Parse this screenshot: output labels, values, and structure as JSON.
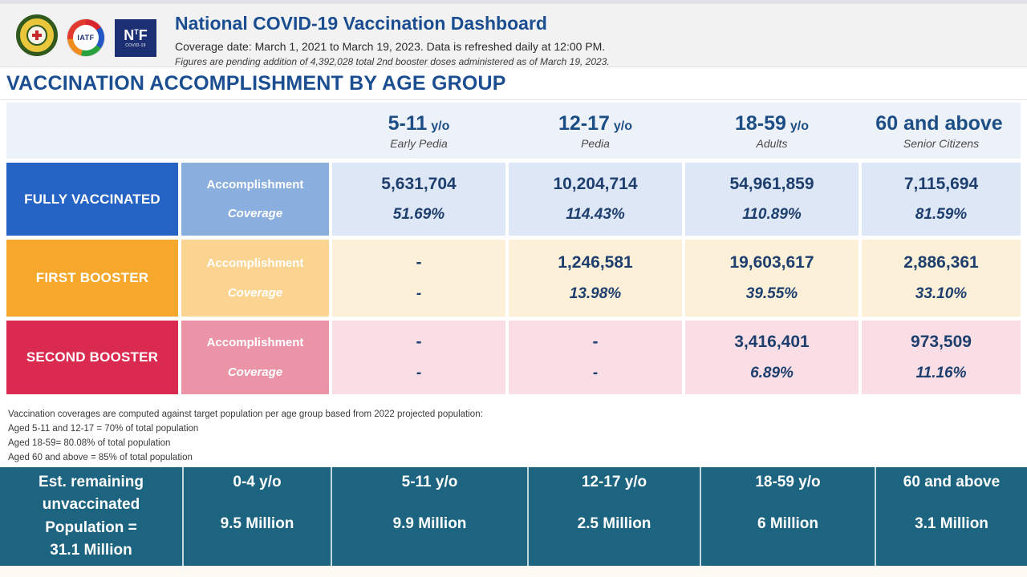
{
  "header": {
    "title": "National COVID-19 Vaccination Dashboard",
    "subtitle": "Coverage date: March 1, 2021 to March 19, 2023. Data is refreshed daily at 12:00 PM.",
    "note": "Figures are pending addition of 4,392,028 total 2nd booster doses administered as of March 19, 2023.",
    "logos": {
      "doh_icon": "doh-seal-icon",
      "iatf_label": "IATF",
      "ntf": {
        "n": "N",
        "t": "T",
        "f": "F",
        "sub": "COVID-19"
      }
    }
  },
  "section_title": "VACCINATION ACCOMPLISHMENT BY AGE GROUP",
  "table": {
    "sublabels": {
      "accomplishment": "Accomplishment",
      "coverage": "Coverage"
    },
    "age_groups": [
      {
        "range": "5-11",
        "suffix": "y/o",
        "subtitle": "Early Pedia"
      },
      {
        "range": "12-17",
        "suffix": "y/o",
        "subtitle": "Pedia"
      },
      {
        "range": "18-59",
        "suffix": "y/o",
        "subtitle": "Adults"
      },
      {
        "range": "60 and above",
        "suffix": "",
        "subtitle": "Senior Citizens"
      }
    ],
    "rows": [
      {
        "label": "FULLY VACCINATED",
        "values": [
          {
            "accomplishment": "5,631,704",
            "coverage": "51.69%"
          },
          {
            "accomplishment": "10,204,714",
            "coverage": "114.43%"
          },
          {
            "accomplishment": "54,961,859",
            "coverage": "110.89%"
          },
          {
            "accomplishment": "7,115,694",
            "coverage": "81.59%"
          }
        ]
      },
      {
        "label": "FIRST BOOSTER",
        "values": [
          {
            "accomplishment": "-",
            "coverage": "-"
          },
          {
            "accomplishment": "1,246,581",
            "coverage": "13.98%"
          },
          {
            "accomplishment": "19,603,617",
            "coverage": "39.55%"
          },
          {
            "accomplishment": "2,886,361",
            "coverage": "33.10%"
          }
        ]
      },
      {
        "label": "SECOND BOOSTER",
        "values": [
          {
            "accomplishment": "-",
            "coverage": "-"
          },
          {
            "accomplishment": "-",
            "coverage": "-"
          },
          {
            "accomplishment": "3,416,401",
            "coverage": "6.89%"
          },
          {
            "accomplishment": "973,509",
            "coverage": "11.16%"
          }
        ]
      }
    ]
  },
  "footnotes": [
    "Vaccination coverages are computed against target population per age group based from 2022 projected population:",
    "Aged 5-11 and 12-17 = 70% of total population",
    "Aged 18-59= 80.08% of total population",
    "Aged 60 and above = 85% of total population"
  ],
  "unvaccinated": {
    "label_lines": [
      "Est. remaining",
      "unvaccinated",
      "Population =",
      "31.1 Million"
    ],
    "cells": [
      {
        "age": "0-4 y/o",
        "value": "9.5 Million"
      },
      {
        "age": "5-11 y/o",
        "value": "9.9 Million"
      },
      {
        "age": "12-17 y/o",
        "value": "2.5 Million"
      },
      {
        "age": "18-59 y/o",
        "value": "6 Million"
      },
      {
        "age": "60 and above",
        "value": "3.1 Million"
      }
    ]
  },
  "colors": {
    "title_blue": "#1b4e91",
    "fully_vaccinated": "#2563c4",
    "fully_vaccinated_light": "#dde7f5",
    "first_booster": "#f6a82c",
    "first_booster_light": "#fdf0d9",
    "second_booster": "#da2a50",
    "second_booster_light": "#f9dee5",
    "teal_band": "#1d6480",
    "header_band": "#f2f2f3",
    "value_navy": "#1e3f6e"
  }
}
